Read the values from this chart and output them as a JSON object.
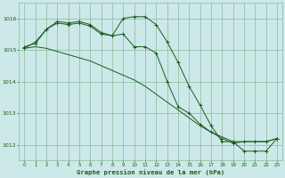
{
  "title": "Graphe pression niveau de la mer (hPa)",
  "background_color": "#cce8e8",
  "grid_color": "#88bb99",
  "line_color": "#1a5c1a",
  "xlim": [
    -0.5,
    23.5
  ],
  "ylim": [
    1011.5,
    1016.5
  ],
  "yticks": [
    1012,
    1013,
    1014,
    1015,
    1016
  ],
  "xticks": [
    0,
    1,
    2,
    3,
    4,
    5,
    6,
    7,
    8,
    9,
    10,
    11,
    12,
    13,
    14,
    15,
    16,
    17,
    18,
    19,
    20,
    21,
    22,
    23
  ],
  "series1": {
    "x": [
      0,
      1,
      2,
      3,
      4,
      5,
      6,
      7,
      8,
      9,
      10,
      11,
      12,
      13,
      14,
      15,
      16,
      17,
      18,
      19,
      20,
      21,
      22,
      23
    ],
    "y": [
      1015.1,
      1015.2,
      1015.65,
      1015.9,
      1015.85,
      1015.9,
      1015.8,
      1015.55,
      1015.45,
      1015.5,
      1015.1,
      1015.1,
      1014.9,
      1014.0,
      1013.2,
      1013.0,
      1012.65,
      1012.4,
      1012.2,
      1012.05,
      1012.1,
      1012.1,
      1012.1,
      1012.2
    ]
  },
  "series2": {
    "x": [
      0,
      1,
      2,
      3,
      4,
      5,
      6,
      7,
      8,
      9,
      10,
      11,
      12,
      13,
      14,
      15,
      16,
      17,
      18,
      19,
      20,
      21,
      22,
      23
    ],
    "y": [
      1015.05,
      1015.25,
      1015.65,
      1015.85,
      1015.8,
      1015.85,
      1015.75,
      1015.5,
      1015.45,
      1016.0,
      1016.05,
      1016.05,
      1015.8,
      1015.25,
      1014.6,
      1013.85,
      1013.25,
      1012.6,
      1012.1,
      1012.1,
      1011.8,
      1011.8,
      1011.8,
      1012.2
    ]
  },
  "series3": {
    "x": [
      0,
      1,
      2,
      3,
      4,
      5,
      6,
      7,
      8,
      9,
      10,
      11,
      12,
      13,
      14,
      15,
      16,
      17,
      18,
      19,
      20,
      21,
      22,
      23
    ],
    "y": [
      1015.05,
      1015.1,
      1015.05,
      1014.95,
      1014.85,
      1014.75,
      1014.65,
      1014.5,
      1014.35,
      1014.2,
      1014.05,
      1013.85,
      1013.6,
      1013.35,
      1013.1,
      1012.85,
      1012.6,
      1012.4,
      1012.25,
      1012.1,
      1012.1,
      1012.1,
      1012.1,
      1012.2
    ]
  }
}
